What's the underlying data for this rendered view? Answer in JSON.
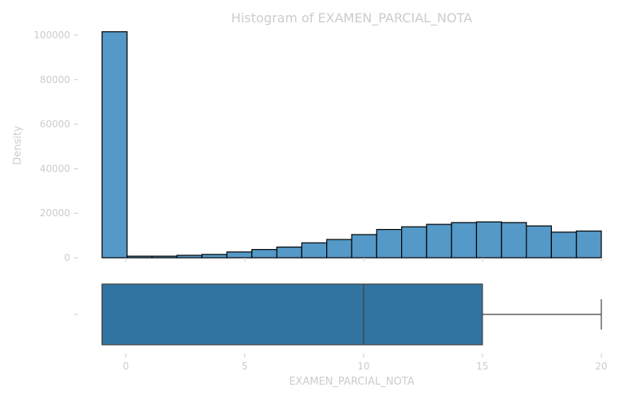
{
  "chart_data": [
    {
      "type": "bar",
      "title": "Histogram of EXAMEN_PARCIAL_NOTA",
      "ylabel": "Density",
      "ylim": [
        0,
        105000
      ],
      "yticks": [
        0,
        20000,
        40000,
        60000,
        80000,
        100000
      ],
      "ytick_labels": [
        "0",
        "20000",
        "40000",
        "60000",
        "80000",
        "100000"
      ],
      "bin_start": -1,
      "bin_width": 1.05,
      "values": [
        101500,
        700,
        700,
        1100,
        1500,
        2600,
        3700,
        4800,
        6700,
        8200,
        10400,
        12700,
        13900,
        15000,
        15800,
        16100,
        15800,
        14300,
        11500,
        12000
      ],
      "bar_color": "#5499c7",
      "edge_color": "#000000",
      "grid": false
    },
    {
      "type": "box",
      "xlabel": "EXAMEN_PARCIAL_NOTA",
      "xlim": [
        -1,
        20
      ],
      "xticks": [
        0,
        5,
        10,
        15,
        20
      ],
      "xtick_labels": [
        "0",
        "5",
        "10",
        "15",
        "20"
      ],
      "ytick_labels": [
        ""
      ],
      "min": -1,
      "q1": -1,
      "median": 10,
      "q3": 15,
      "max": 20,
      "box_color": "#3274a1"
    }
  ]
}
